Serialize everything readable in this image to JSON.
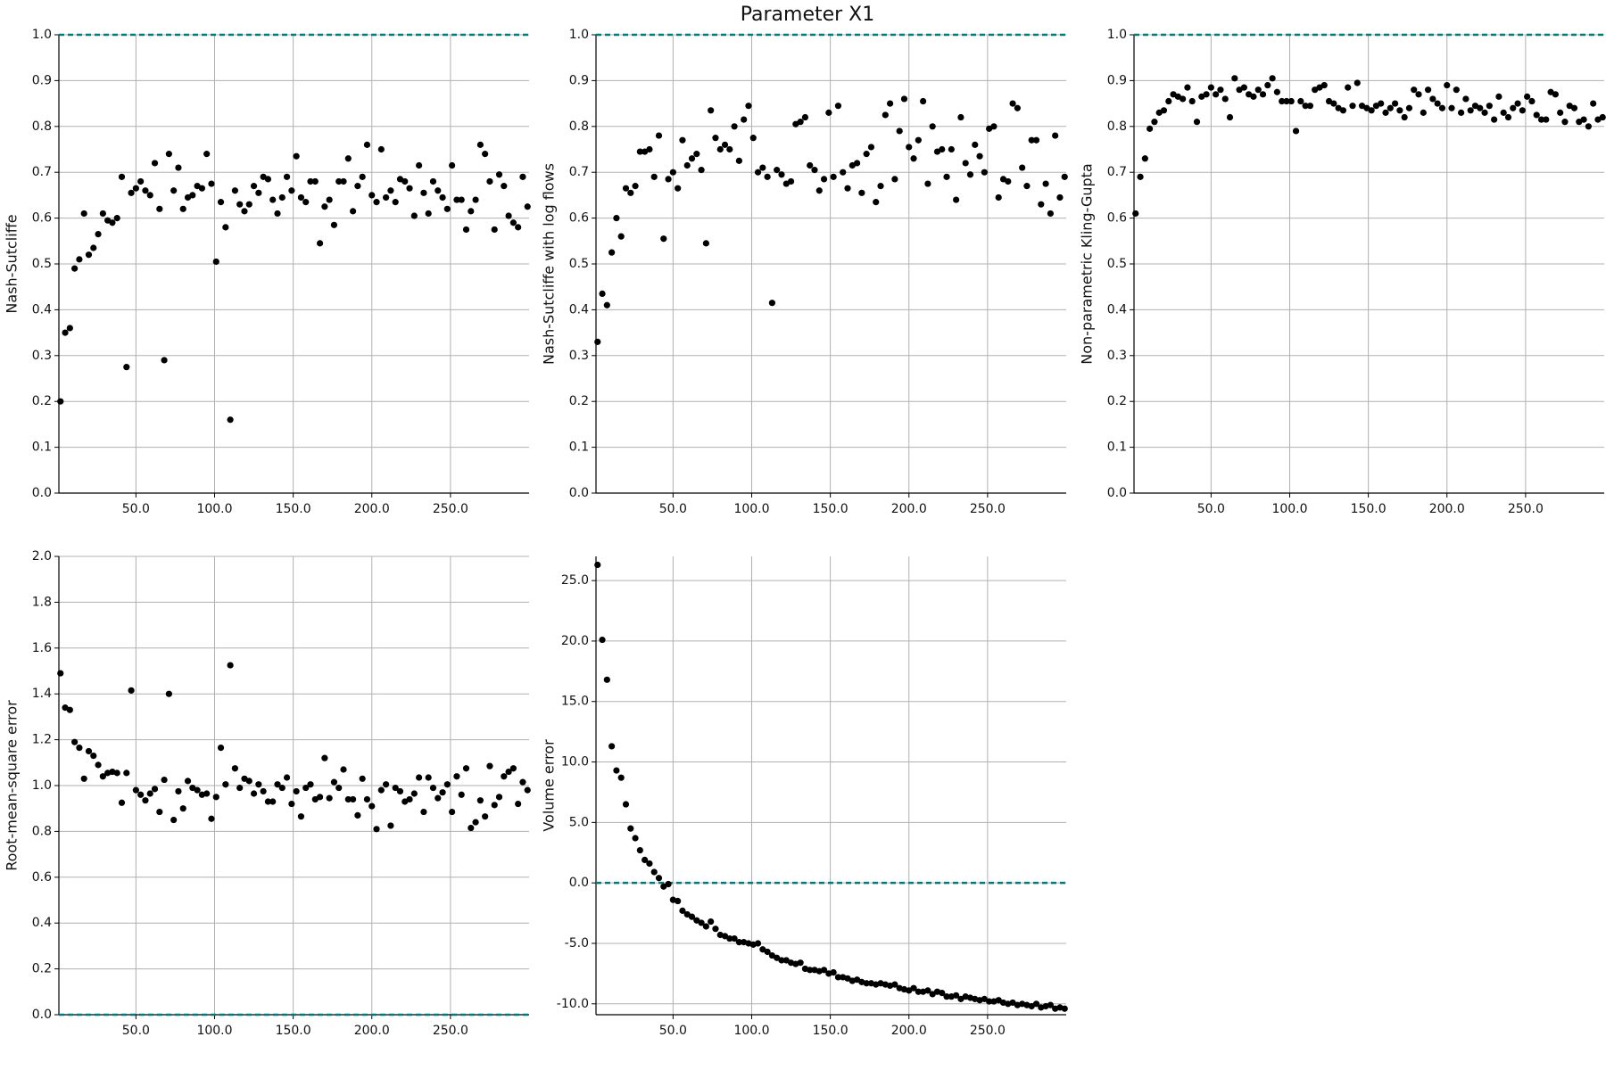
{
  "title": "Parameter X1",
  "chart_data": [
    {
      "type": "scatter",
      "ylabel": "Nash-Sutcliffe",
      "color": "#000000",
      "grid": true,
      "hline": {
        "value": 1.0,
        "color": "#007b7b"
      },
      "xlim": [
        1,
        300
      ],
      "ylim": [
        0,
        1
      ],
      "xticks": [
        {
          "value": 50,
          "label": "50.0"
        },
        {
          "value": 100,
          "label": "100.0"
        },
        {
          "value": 150,
          "label": "150.0"
        },
        {
          "value": 200,
          "label": "200.0"
        },
        {
          "value": 250,
          "label": "250.0"
        }
      ],
      "yticks": [
        {
          "value": 0,
          "label": "0.0"
        },
        0.1,
        0.2,
        0.3,
        0.4,
        0.5,
        0.6,
        0.7,
        0.8,
        0.9,
        {
          "value": 1,
          "label": "1.0"
        }
      ],
      "x": [
        2,
        5,
        8,
        11,
        14,
        17,
        20,
        23,
        26,
        29,
        32,
        35,
        38,
        41,
        44,
        47,
        50,
        53,
        56,
        59,
        62,
        65,
        68,
        71,
        74,
        77,
        80,
        83,
        86,
        89,
        92,
        95,
        98,
        101,
        104,
        107,
        110,
        113,
        116,
        119,
        122,
        125,
        128,
        131,
        134,
        137,
        140,
        143,
        146,
        149,
        152,
        155,
        158,
        161,
        164,
        167,
        170,
        173,
        176,
        179,
        182,
        185,
        188,
        191,
        194,
        197,
        200,
        203,
        206,
        209,
        212,
        215,
        218,
        221,
        224,
        227,
        230,
        233,
        236,
        239,
        242,
        245,
        248,
        251,
        254,
        257,
        260,
        263,
        266,
        269,
        272,
        275,
        278,
        281,
        284,
        287,
        290,
        293,
        296,
        299
      ],
      "values": [
        0.2,
        0.35,
        0.36,
        0.49,
        0.51,
        0.61,
        0.52,
        0.535,
        0.565,
        0.61,
        0.595,
        0.59,
        0.6,
        0.69,
        0.275,
        0.655,
        0.665,
        0.68,
        0.66,
        0.65,
        0.72,
        0.62,
        0.29,
        0.74,
        0.66,
        0.71,
        0.62,
        0.645,
        0.65,
        0.67,
        0.665,
        0.74,
        0.675,
        0.505,
        0.635,
        0.58,
        0.16,
        0.66,
        0.63,
        0.615,
        0.63,
        0.67,
        0.655,
        0.69,
        0.685,
        0.64,
        0.61,
        0.645,
        0.69,
        0.66,
        0.735,
        0.645,
        0.635,
        0.68,
        0.68,
        0.545,
        0.625,
        0.64,
        0.585,
        0.68,
        0.68,
        0.73,
        0.615,
        0.67,
        0.69,
        0.76,
        0.65,
        0.635,
        0.75,
        0.645,
        0.66,
        0.635,
        0.685,
        0.68,
        0.665,
        0.605,
        0.715,
        0.655,
        0.61,
        0.68,
        0.66,
        0.645,
        0.62,
        0.715,
        0.64,
        0.64,
        0.575,
        0.615,
        0.64,
        0.76,
        0.74,
        0.68,
        0.575,
        0.695,
        0.67,
        0.605,
        0.59,
        0.58,
        0.69,
        0.625
      ]
    },
    {
      "type": "scatter",
      "ylabel": "Nash-Sutcliffe with log flows",
      "color": "#000000",
      "grid": true,
      "hline": {
        "value": 1.0,
        "color": "#007b7b"
      },
      "xlim": [
        1,
        300
      ],
      "ylim": [
        0,
        1
      ],
      "xticks": [
        {
          "value": 50,
          "label": "50.0"
        },
        {
          "value": 100,
          "label": "100.0"
        },
        {
          "value": 150,
          "label": "150.0"
        },
        {
          "value": 200,
          "label": "200.0"
        },
        {
          "value": 250,
          "label": "250.0"
        }
      ],
      "yticks": [
        {
          "value": 0,
          "label": "0.0"
        },
        0.1,
        0.2,
        0.3,
        0.4,
        0.5,
        0.6,
        0.7,
        0.8,
        0.9,
        {
          "value": 1,
          "label": "1.0"
        }
      ],
      "x": [
        2,
        5,
        8,
        11,
        14,
        17,
        20,
        23,
        26,
        29,
        32,
        35,
        38,
        41,
        44,
        47,
        50,
        53,
        56,
        59,
        62,
        65,
        68,
        71,
        74,
        77,
        80,
        83,
        86,
        89,
        92,
        95,
        98,
        101,
        104,
        107,
        110,
        113,
        116,
        119,
        122,
        125,
        128,
        131,
        134,
        137,
        140,
        143,
        146,
        149,
        152,
        155,
        158,
        161,
        164,
        167,
        170,
        173,
        176,
        179,
        182,
        185,
        188,
        191,
        194,
        197,
        200,
        203,
        206,
        209,
        212,
        215,
        218,
        221,
        224,
        227,
        230,
        233,
        236,
        239,
        242,
        245,
        248,
        251,
        254,
        257,
        260,
        263,
        266,
        269,
        272,
        275,
        278,
        281,
        284,
        287,
        290,
        293,
        296,
        299
      ],
      "values": [
        0.33,
        0.435,
        0.41,
        0.525,
        0.6,
        0.56,
        0.665,
        0.655,
        0.67,
        0.745,
        0.745,
        0.75,
        0.69,
        0.78,
        0.555,
        0.685,
        0.7,
        0.665,
        0.77,
        0.715,
        0.73,
        0.74,
        0.705,
        0.545,
        0.835,
        0.775,
        0.75,
        0.76,
        0.75,
        0.8,
        0.725,
        0.815,
        0.845,
        0.775,
        0.7,
        0.71,
        0.69,
        0.415,
        0.705,
        0.695,
        0.675,
        0.68,
        0.805,
        0.81,
        0.82,
        0.715,
        0.705,
        0.66,
        0.685,
        0.83,
        0.69,
        0.845,
        0.7,
        0.665,
        0.715,
        0.72,
        0.655,
        0.74,
        0.755,
        0.635,
        0.67,
        0.825,
        0.85,
        0.685,
        0.79,
        0.86,
        0.755,
        0.73,
        0.77,
        0.855,
        0.675,
        0.8,
        0.745,
        0.75,
        0.69,
        0.75,
        0.64,
        0.82,
        0.72,
        0.695,
        0.76,
        0.735,
        0.7,
        0.795,
        0.8,
        0.645,
        0.685,
        0.68,
        0.85,
        0.84,
        0.71,
        0.67,
        0.77,
        0.77,
        0.63,
        0.675,
        0.61,
        0.78,
        0.645,
        0.69
      ]
    },
    {
      "type": "scatter",
      "ylabel": "Non-parametric Kling-Gupta",
      "color": "#000000",
      "grid": true,
      "hline": {
        "value": 1.0,
        "color": "#007b7b"
      },
      "xlim": [
        1,
        300
      ],
      "ylim": [
        0,
        1
      ],
      "xticks": [
        {
          "value": 50,
          "label": "50.0"
        },
        {
          "value": 100,
          "label": "100.0"
        },
        {
          "value": 150,
          "label": "150.0"
        },
        {
          "value": 200,
          "label": "200.0"
        },
        {
          "value": 250,
          "label": "250.0"
        }
      ],
      "yticks": [
        {
          "value": 0,
          "label": "0.0"
        },
        0.1,
        0.2,
        0.3,
        0.4,
        0.5,
        0.6,
        0.7,
        0.8,
        0.9,
        {
          "value": 1,
          "label": "1.0"
        }
      ],
      "x": [
        2,
        5,
        8,
        11,
        14,
        17,
        20,
        23,
        26,
        29,
        32,
        35,
        38,
        41,
        44,
        47,
        50,
        53,
        56,
        59,
        62,
        65,
        68,
        71,
        74,
        77,
        80,
        83,
        86,
        89,
        92,
        95,
        98,
        101,
        104,
        107,
        110,
        113,
        116,
        119,
        122,
        125,
        128,
        131,
        134,
        137,
        140,
        143,
        146,
        149,
        152,
        155,
        158,
        161,
        164,
        167,
        170,
        173,
        176,
        179,
        182,
        185,
        188,
        191,
        194,
        197,
        200,
        203,
        206,
        209,
        212,
        215,
        218,
        221,
        224,
        227,
        230,
        233,
        236,
        239,
        242,
        245,
        248,
        251,
        254,
        257,
        260,
        263,
        266,
        269,
        272,
        275,
        278,
        281,
        284,
        287,
        290,
        293,
        296,
        299
      ],
      "values": [
        0.61,
        0.69,
        0.73,
        0.795,
        0.81,
        0.83,
        0.835,
        0.855,
        0.87,
        0.865,
        0.86,
        0.885,
        0.855,
        0.81,
        0.865,
        0.87,
        0.885,
        0.87,
        0.88,
        0.86,
        0.82,
        0.905,
        0.88,
        0.885,
        0.87,
        0.865,
        0.88,
        0.87,
        0.89,
        0.905,
        0.875,
        0.855,
        0.855,
        0.855,
        0.79,
        0.855,
        0.845,
        0.845,
        0.88,
        0.885,
        0.89,
        0.855,
        0.85,
        0.84,
        0.835,
        0.885,
        0.845,
        0.895,
        0.845,
        0.84,
        0.835,
        0.845,
        0.85,
        0.83,
        0.84,
        0.85,
        0.835,
        0.82,
        0.84,
        0.88,
        0.87,
        0.83,
        0.88,
        0.86,
        0.85,
        0.84,
        0.89,
        0.84,
        0.88,
        0.83,
        0.86,
        0.835,
        0.845,
        0.84,
        0.83,
        0.845,
        0.815,
        0.865,
        0.83,
        0.82,
        0.84,
        0.85,
        0.835,
        0.865,
        0.855,
        0.825,
        0.815,
        0.815,
        0.875,
        0.87,
        0.83,
        0.81,
        0.845,
        0.84,
        0.81,
        0.815,
        0.8,
        0.85,
        0.815,
        0.82
      ]
    },
    {
      "type": "scatter",
      "ylabel": "Root-mean-square error",
      "color": "#000000",
      "grid": true,
      "hline": {
        "value": 0,
        "color": "#007b7b"
      },
      "xlim": [
        1,
        300
      ],
      "ylim": [
        0,
        2
      ],
      "xticks": [
        {
          "value": 50,
          "label": "50.0"
        },
        {
          "value": 100,
          "label": "100.0"
        },
        {
          "value": 150,
          "label": "150.0"
        },
        {
          "value": 200,
          "label": "200.0"
        },
        {
          "value": 250,
          "label": "250.0"
        }
      ],
      "yticks": [
        {
          "value": 0,
          "label": "0.0"
        },
        0.2,
        0.4,
        0.6,
        0.8,
        {
          "value": 1,
          "label": "1.0"
        },
        1.2,
        1.4,
        1.6,
        1.8,
        {
          "value": 2,
          "label": "2.0"
        }
      ],
      "x": [
        2,
        5,
        8,
        11,
        14,
        17,
        20,
        23,
        26,
        29,
        32,
        35,
        38,
        41,
        44,
        47,
        50,
        53,
        56,
        59,
        62,
        65,
        68,
        71,
        74,
        77,
        80,
        83,
        86,
        89,
        92,
        95,
        98,
        101,
        104,
        107,
        110,
        113,
        116,
        119,
        122,
        125,
        128,
        131,
        134,
        137,
        140,
        143,
        146,
        149,
        152,
        155,
        158,
        161,
        164,
        167,
        170,
        173,
        176,
        179,
        182,
        185,
        188,
        191,
        194,
        197,
        200,
        203,
        206,
        209,
        212,
        215,
        218,
        221,
        224,
        227,
        230,
        233,
        236,
        239,
        242,
        245,
        248,
        251,
        254,
        257,
        260,
        263,
        266,
        269,
        272,
        275,
        278,
        281,
        284,
        287,
        290,
        293,
        296,
        299
      ],
      "values": [
        1.49,
        1.34,
        1.33,
        1.19,
        1.165,
        1.03,
        1.15,
        1.13,
        1.09,
        1.04,
        1.055,
        1.06,
        1.055,
        0.925,
        1.055,
        1.415,
        0.98,
        0.96,
        0.935,
        0.965,
        0.985,
        0.885,
        1.025,
        1.4,
        0.85,
        0.975,
        0.9,
        1.02,
        0.99,
        0.98,
        0.96,
        0.965,
        0.855,
        0.95,
        1.165,
        1.005,
        1.525,
        1.075,
        0.99,
        1.03,
        1.02,
        0.965,
        1.005,
        0.975,
        0.93,
        0.93,
        1.005,
        0.99,
        1.035,
        0.92,
        0.975,
        0.865,
        0.99,
        1.005,
        0.94,
        0.95,
        1.12,
        0.945,
        1.015,
        0.99,
        1.07,
        0.94,
        0.94,
        0.87,
        1.03,
        0.94,
        0.91,
        0.81,
        0.98,
        1.005,
        0.825,
        0.99,
        0.975,
        0.93,
        0.94,
        0.965,
        1.035,
        0.885,
        1.035,
        0.99,
        0.945,
        0.97,
        1.005,
        0.885,
        1.04,
        0.96,
        1.075,
        0.815,
        0.84,
        0.935,
        0.865,
        1.085,
        0.915,
        0.95,
        1.04,
        1.06,
        1.075,
        0.92,
        1.015,
        0.98
      ]
    },
    {
      "type": "scatter",
      "ylabel": "Volume error",
      "color": "#000000",
      "grid": true,
      "hline": {
        "value": 0,
        "color": "#007b7b"
      },
      "xlim": [
        1,
        300
      ],
      "ylim": [
        -10.9,
        27
      ],
      "xticks": [
        {
          "value": 50,
          "label": "50.0"
        },
        {
          "value": 100,
          "label": "100.0"
        },
        {
          "value": 150,
          "label": "150.0"
        },
        {
          "value": 200,
          "label": "200.0"
        },
        {
          "value": 250,
          "label": "250.0"
        }
      ],
      "yticks": [
        {
          "value": -10,
          "label": "-10.0"
        },
        {
          "value": -5,
          "label": "-5.0"
        },
        {
          "value": 0,
          "label": "0.0"
        },
        {
          "value": 5,
          "label": "5.0"
        },
        {
          "value": 10,
          "label": "10.0"
        },
        {
          "value": 15,
          "label": "15.0"
        },
        {
          "value": 20,
          "label": "20.0"
        },
        {
          "value": 25,
          "label": "25.0"
        }
      ],
      "x": [
        2,
        5,
        8,
        11,
        14,
        17,
        20,
        23,
        26,
        29,
        32,
        35,
        38,
        41,
        44,
        47,
        50,
        53,
        56,
        59,
        62,
        65,
        68,
        71,
        74,
        77,
        80,
        83,
        86,
        89,
        92,
        95,
        98,
        101,
        104,
        107,
        110,
        113,
        116,
        119,
        122,
        125,
        128,
        131,
        134,
        137,
        140,
        143,
        146,
        149,
        152,
        155,
        158,
        161,
        164,
        167,
        170,
        173,
        176,
        179,
        182,
        185,
        188,
        191,
        194,
        197,
        200,
        203,
        206,
        209,
        212,
        215,
        218,
        221,
        224,
        227,
        230,
        233,
        236,
        239,
        242,
        245,
        248,
        251,
        254,
        257,
        260,
        263,
        266,
        269,
        272,
        275,
        278,
        281,
        284,
        287,
        290,
        293,
        296,
        299
      ],
      "values": [
        26.3,
        20.1,
        16.8,
        11.3,
        9.3,
        8.7,
        6.5,
        4.5,
        3.7,
        2.7,
        1.9,
        1.6,
        0.9,
        0.4,
        -0.3,
        -0.1,
        -1.4,
        -1.5,
        -2.3,
        -2.6,
        -2.8,
        -3.1,
        -3.3,
        -3.6,
        -3.2,
        -3.8,
        -4.3,
        -4.4,
        -4.6,
        -4.6,
        -4.9,
        -4.9,
        -5.0,
        -5.1,
        -5.0,
        -5.5,
        -5.7,
        -6.0,
        -6.2,
        -6.4,
        -6.4,
        -6.6,
        -6.7,
        -6.6,
        -7.1,
        -7.2,
        -7.2,
        -7.3,
        -7.2,
        -7.5,
        -7.4,
        -7.8,
        -7.8,
        -7.9,
        -8.1,
        -8.0,
        -8.2,
        -8.3,
        -8.3,
        -8.4,
        -8.3,
        -8.4,
        -8.5,
        -8.4,
        -8.7,
        -8.8,
        -8.9,
        -8.7,
        -9.0,
        -9.0,
        -8.9,
        -9.2,
        -9.0,
        -9.1,
        -9.4,
        -9.4,
        -9.3,
        -9.6,
        -9.4,
        -9.5,
        -9.6,
        -9.7,
        -9.6,
        -9.8,
        -9.8,
        -9.7,
        -9.9,
        -10.0,
        -9.9,
        -10.1,
        -10.0,
        -10.1,
        -10.2,
        -10.0,
        -10.3,
        -10.2,
        -10.1,
        -10.4,
        -10.3,
        -10.4
      ]
    }
  ]
}
